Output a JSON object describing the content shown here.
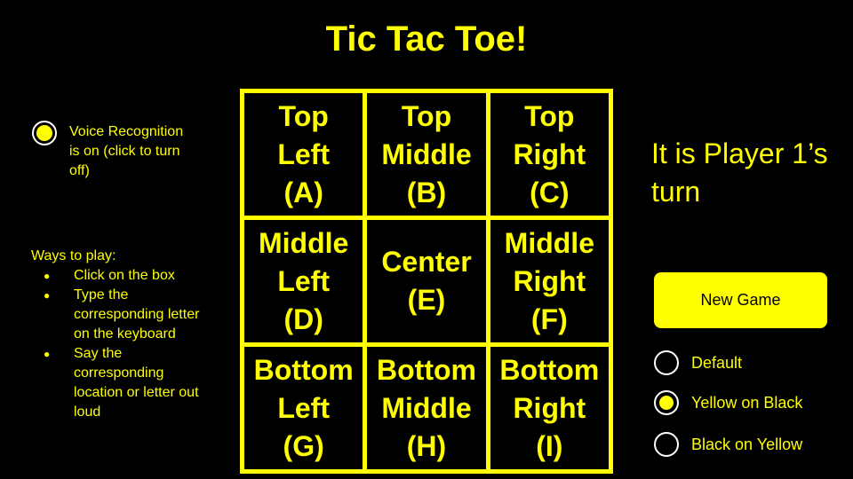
{
  "title": "Tic Tac Toe!",
  "voice": {
    "label": "Voice Recognition is on (click to turn off)",
    "on": true
  },
  "ways": {
    "heading": "Ways to play:",
    "items": [
      "Click on the box",
      "Type the corresponding letter on the keyboard",
      "Say the corresponding location or letter out loud"
    ]
  },
  "board": {
    "cells": [
      "Top\nLeft\n(A)",
      "Top\nMiddle\n(B)",
      "Top\nRight\n(C)",
      "Middle\nLeft\n(D)",
      "Center\n(E)",
      "Middle\nRight\n(F)",
      "Bottom\nLeft\n(G)",
      "Bottom\nMiddle\n(H)",
      "Bottom\nRight\n(I)"
    ]
  },
  "turn_text": "It is Player 1’s turn",
  "new_game_label": "New Game",
  "themes": [
    {
      "label": "Default",
      "selected": false
    },
    {
      "label": "Yellow on Black",
      "selected": true
    },
    {
      "label": "Black on Yellow",
      "selected": false
    }
  ],
  "colors": {
    "background": "#000000",
    "accent": "#ffff00",
    "radio_border": "#ffffff"
  }
}
